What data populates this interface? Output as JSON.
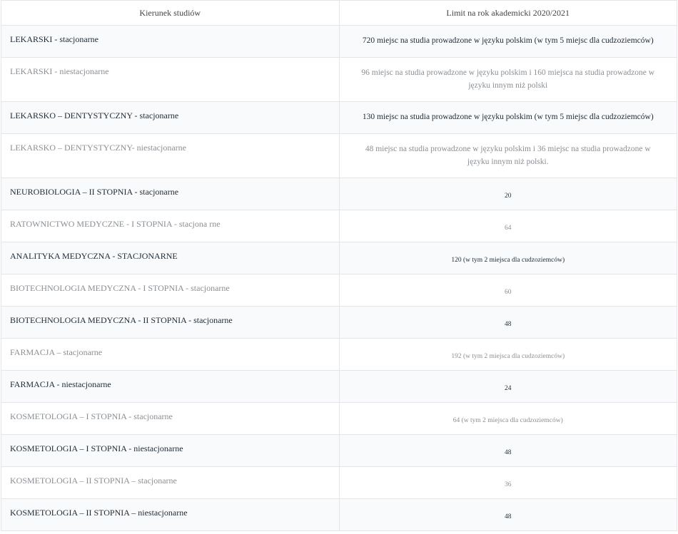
{
  "table": {
    "headers": [
      "Kierunek studiów",
      "Limit na rok akademicki 2020/2021"
    ],
    "rows": [
      {
        "name": "LEKARSKI - stacjonarne",
        "limit": "720 miejsc na studia prowadzone w języku polskim (w tym 5 miejsc dla cudzoziemców)"
      },
      {
        "name": "LEKARSKI - niestacjonarne",
        "limit": "96 miejsc na studia prowadzone w języku polskim i 160 miejsca na studia prowadzone w języku innym niż polski"
      },
      {
        "name": "LEKARSKO – DENTYSTYCZNY - stacjonarne",
        "limit": "130 miejsc na studia prowadzone w języku polskim (w tym 5 miejsc dla cudzoziemców)"
      },
      {
        "name": "LEKARSKO – DENTYSTYCZNY- niestacjonarne",
        "limit": "48 miejsc na studia prowadzone w języku polskim i 36 miejsc na studia prowadzone w języku innym niż polski."
      },
      {
        "name": "NEUROBIOLOGIA – II STOPNIA - stacjonarne",
        "limit": "20"
      },
      {
        "name": "RATOWNICTWO MEDYCZNE - I STOPNIA - stacjona rne",
        "limit": "64"
      },
      {
        "name": "ANALITYKA MEDYCZNA - STACJONARNE",
        "limit": "120 (w tym 2 miejsca dla cudzoziemców)"
      },
      {
        "name": "BIOTECHNOLOGIA MEDYCZNA - I STOPNIA - stacjonarne",
        "limit": "60"
      },
      {
        "name": "BIOTECHNOLOGIA MEDYCZNA - II STOPNIA - stacjonarne",
        "limit": "48"
      },
      {
        "name": "FARMACJA – stacjonarne",
        "limit": "192 (w tym 2 miejsca dla cudzoziemców)"
      },
      {
        "name": "FARMACJA - niestacjonarne",
        "limit": "24"
      },
      {
        "name": "KOSMETOLOGIA – I STOPNIA - stacjonarne",
        "limit": "64 (w tym 2 miejsca dla cudzoziemców)"
      },
      {
        "name": "KOSMETOLOGIA – I STOPNIA - niestacjonarne",
        "limit": "48"
      },
      {
        "name": "KOSMETOLOGIA – II STOPNIA – stacjonarne",
        "limit": "36"
      },
      {
        "name": "KOSMETOLOGIA – II STOPNIA – niestacjonarne",
        "limit": "48"
      }
    ]
  }
}
